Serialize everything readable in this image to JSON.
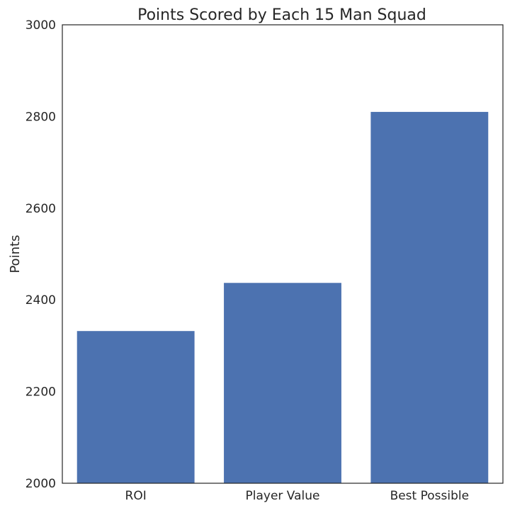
{
  "chart_data": {
    "type": "bar",
    "title": "Points Scored by Each 15 Man Squad",
    "xlabel": "",
    "ylabel": "Points",
    "categories": [
      "ROI",
      "Player Value",
      "Best Possible"
    ],
    "values": [
      2332,
      2437,
      2810
    ],
    "ylim": [
      2000,
      3000
    ],
    "yticks": [
      2000,
      2200,
      2400,
      2600,
      2800,
      3000
    ],
    "grid": false,
    "bar_color": "#4c72b0",
    "frame_color": "#262626"
  }
}
